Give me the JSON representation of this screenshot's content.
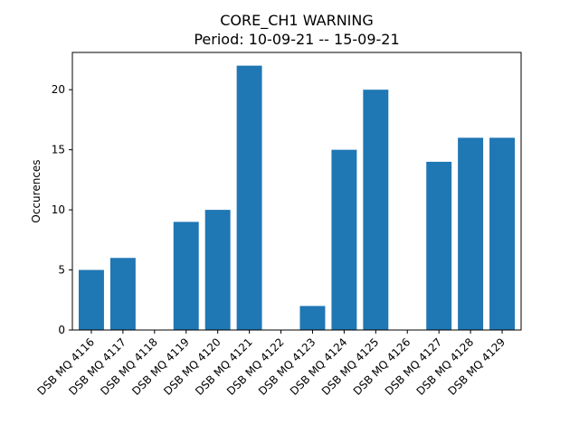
{
  "chart_data": {
    "type": "bar",
    "title": "CORE_CH1 WARNING",
    "subtitle": "Period: 10-09-21 -- 15-09-21",
    "xlabel": "",
    "ylabel": "Occurences",
    "categories": [
      "DSB MQ 4116",
      "DSB MQ 4117",
      "DSB MQ 4118",
      "DSB MQ 4119",
      "DSB MQ 4120",
      "DSB MQ 4121",
      "DSB MQ 4122",
      "DSB MQ 4123",
      "DSB MQ 4124",
      "DSB MQ 4125",
      "DSB MQ 4126",
      "DSB MQ 4127",
      "DSB MQ 4128",
      "DSB MQ 4129"
    ],
    "values": [
      5,
      6,
      0,
      9,
      10,
      22,
      0,
      2,
      15,
      20,
      0,
      14,
      16,
      16
    ],
    "ylim": [
      0,
      23.1
    ],
    "yticks": [
      0,
      5,
      10,
      15,
      20
    ],
    "grid": false,
    "legend": "none",
    "bar_color": "#1f77b4"
  }
}
